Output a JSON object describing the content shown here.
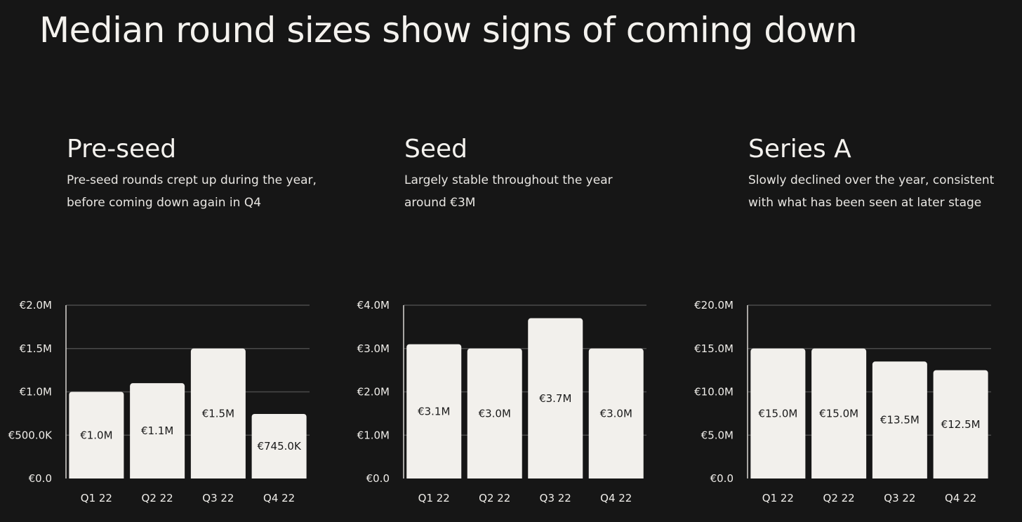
{
  "page": {
    "title": "Median round sizes show signs of coming down"
  },
  "colors": {
    "background": "#161616",
    "bar": "#f2f0ec",
    "grid": "#4a4a4a",
    "axis": "#d8d6d2",
    "text": "#f4f2ee",
    "data_label": "#1a1a1a"
  },
  "panels": [
    {
      "title": "Pre-seed",
      "description_lines": [
        "Pre-seed rounds crept up during the year,",
        "before coming down again in Q4"
      ]
    },
    {
      "title": "Seed",
      "description_lines": [
        "Largely stable throughout the year",
        "around €3M"
      ]
    },
    {
      "title": "Series A",
      "description_lines": [
        "Slowly declined over the year, consistent",
        "with what has been seen at later stage"
      ]
    }
  ],
  "chart_data": [
    {
      "type": "bar",
      "title": "Pre-seed",
      "categories": [
        "Q1 22",
        "Q2 22",
        "Q3 22",
        "Q4 22"
      ],
      "values": [
        1000000,
        1100000,
        1500000,
        745000
      ],
      "data_labels": [
        "€1.0M",
        "€1.1M",
        "€1.5M",
        "€745.0K"
      ],
      "ylim": [
        0,
        2000000
      ],
      "yticks": [
        0,
        500000,
        1000000,
        1500000,
        2000000
      ],
      "ytick_labels": [
        "€0.0",
        "€500.0K",
        "€1.0M",
        "€1.5M",
        "€2.0M"
      ],
      "grid": true,
      "xlabel": "",
      "ylabel": ""
    },
    {
      "type": "bar",
      "title": "Seed",
      "categories": [
        "Q1 22",
        "Q2 22",
        "Q3 22",
        "Q4 22"
      ],
      "values": [
        3100000,
        3000000,
        3700000,
        3000000
      ],
      "data_labels": [
        "€3.1M",
        "€3.0M",
        "€3.7M",
        "€3.0M"
      ],
      "ylim": [
        0,
        4000000
      ],
      "yticks": [
        0,
        1000000,
        2000000,
        3000000,
        4000000
      ],
      "ytick_labels": [
        "€0.0",
        "€1.0M",
        "€2.0M",
        "€3.0M",
        "€4.0M"
      ],
      "grid": true,
      "xlabel": "",
      "ylabel": ""
    },
    {
      "type": "bar",
      "title": "Series A",
      "categories": [
        "Q1 22",
        "Q2 22",
        "Q3 22",
        "Q4 22"
      ],
      "values": [
        15000000,
        15000000,
        13500000,
        12500000
      ],
      "data_labels": [
        "€15.0M",
        "€15.0M",
        "€13.5M",
        "€12.5M"
      ],
      "ylim": [
        0,
        20000000
      ],
      "yticks": [
        0,
        5000000,
        10000000,
        15000000,
        20000000
      ],
      "ytick_labels": [
        "€0.0",
        "€5.0M",
        "€10.0M",
        "€15.0M",
        "€20.0M"
      ],
      "grid": true,
      "xlabel": "",
      "ylabel": ""
    }
  ]
}
